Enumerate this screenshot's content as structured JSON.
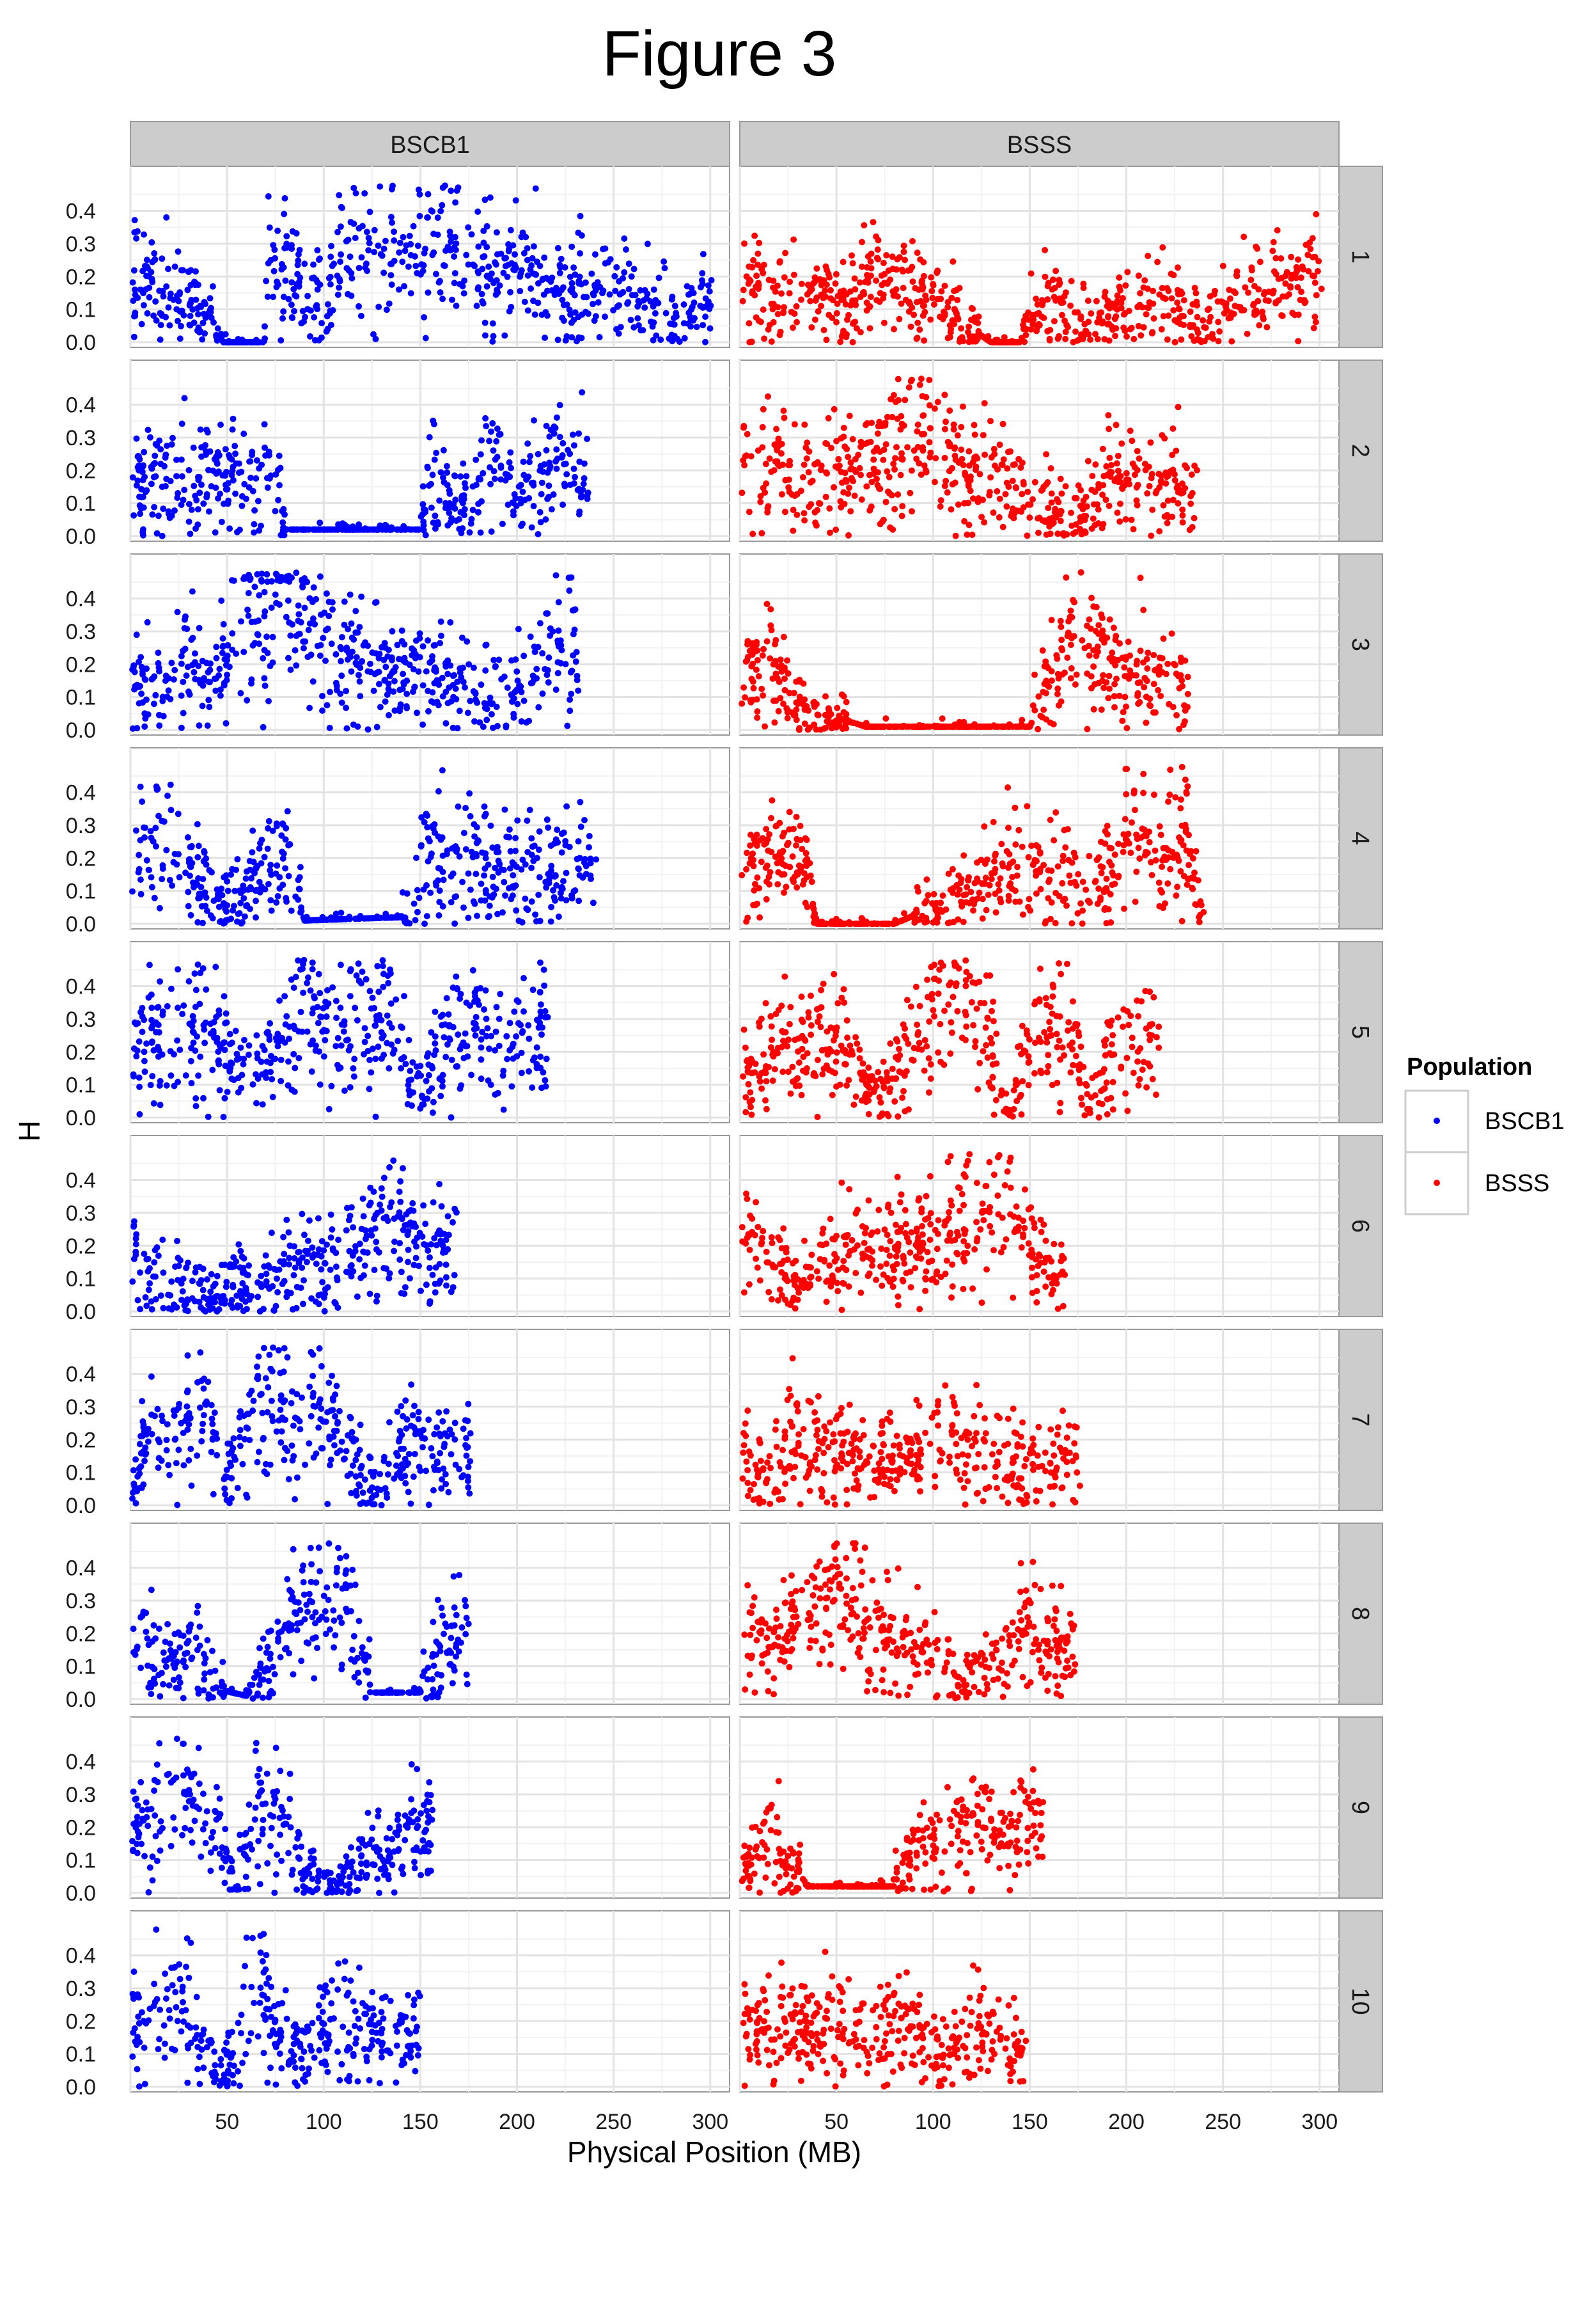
{
  "figure": {
    "title": "Figure 3",
    "xlabel": "Physical Position (MB)",
    "ylabel": "H"
  },
  "legend": {
    "title": "Population",
    "entries": [
      {
        "label": "BSCB1",
        "color": "#0000ff"
      },
      {
        "label": "BSSS",
        "color": "#ff0000"
      }
    ]
  },
  "chart_data": {
    "type": "scatter",
    "facet_columns": [
      "BSCB1",
      "BSSS"
    ],
    "facet_rows": [
      "1",
      "2",
      "3",
      "4",
      "5",
      "6",
      "7",
      "8",
      "9",
      "10"
    ],
    "x_ticks": [
      50,
      100,
      150,
      200,
      250,
      300
    ],
    "y_ticks": [
      0.0,
      0.1,
      0.2,
      0.3,
      0.4
    ],
    "y_tick_labels": [
      "0.0",
      "0.1",
      "0.2",
      "0.3",
      "0.4"
    ],
    "xlim": [
      0,
      310
    ],
    "ylim": [
      0,
      0.52
    ],
    "grid": true,
    "legend_position": "right",
    "series_colors": {
      "BSCB1": "#0000ff",
      "BSSS": "#ff0000"
    },
    "chromosome_length_mb": [
      301,
      237,
      232,
      241,
      217,
      169,
      176,
      175,
      157,
      150
    ],
    "profiles": {
      "BSCB1": [
        [
          [
            1,
            0.2
          ],
          [
            20,
            0.17
          ],
          [
            40,
            0.1
          ],
          [
            48,
            0.0
          ],
          [
            68,
            0.0
          ],
          [
            72,
            0.22
          ],
          [
            90,
            0.18
          ],
          [
            100,
            0.15
          ],
          [
            115,
            0.3
          ],
          [
            130,
            0.25
          ],
          [
            150,
            0.3
          ],
          [
            170,
            0.28
          ],
          [
            190,
            0.2
          ],
          [
            210,
            0.22
          ],
          [
            230,
            0.18
          ],
          [
            250,
            0.15
          ],
          [
            270,
            0.1
          ],
          [
            285,
            0.06
          ],
          [
            300,
            0.15
          ]
        ],
        [
          [
            1,
            0.17
          ],
          [
            20,
            0.18
          ],
          [
            40,
            0.17
          ],
          [
            55,
            0.17
          ],
          [
            65,
            0.12
          ],
          [
            75,
            0.3
          ],
          [
            80,
            0.02
          ],
          [
            150,
            0.02
          ],
          [
            155,
            0.2
          ],
          [
            165,
            0.12
          ],
          [
            175,
            0.1
          ],
          [
            190,
            0.25
          ],
          [
            200,
            0.12
          ],
          [
            210,
            0.2
          ],
          [
            237,
            0.22
          ]
        ],
        [
          [
            1,
            0.18
          ],
          [
            10,
            0.12
          ],
          [
            20,
            0.15
          ],
          [
            30,
            0.22
          ],
          [
            40,
            0.15
          ],
          [
            55,
            0.3
          ],
          [
            70,
            0.38
          ],
          [
            80,
            0.42
          ],
          [
            95,
            0.3
          ],
          [
            110,
            0.2
          ],
          [
            125,
            0.22
          ],
          [
            135,
            0.15
          ],
          [
            145,
            0.2
          ],
          [
            160,
            0.15
          ],
          [
            180,
            0.1
          ],
          [
            200,
            0.12
          ],
          [
            215,
            0.2
          ],
          [
            232,
            0.25
          ]
        ],
        [
          [
            1,
            0.2
          ],
          [
            20,
            0.25
          ],
          [
            30,
            0.22
          ],
          [
            40,
            0.1
          ],
          [
            50,
            0.05
          ],
          [
            65,
            0.15
          ],
          [
            80,
            0.2
          ],
          [
            90,
            0.01
          ],
          [
            140,
            0.02
          ],
          [
            150,
            0.18
          ],
          [
            165,
            0.25
          ],
          [
            180,
            0.2
          ],
          [
            195,
            0.15
          ],
          [
            210,
            0.15
          ],
          [
            225,
            0.18
          ],
          [
            241,
            0.2
          ]
        ],
        [
          [
            1,
            0.2
          ],
          [
            20,
            0.25
          ],
          [
            40,
            0.25
          ],
          [
            60,
            0.15
          ],
          [
            75,
            0.22
          ],
          [
            90,
            0.28
          ],
          [
            100,
            0.3
          ],
          [
            120,
            0.3
          ],
          [
            135,
            0.3
          ],
          [
            150,
            0.1
          ],
          [
            165,
            0.25
          ],
          [
            180,
            0.28
          ],
          [
            200,
            0.22
          ],
          [
            217,
            0.25
          ]
        ],
        [
          [
            1,
            0.15
          ],
          [
            20,
            0.1
          ],
          [
            40,
            0.05
          ],
          [
            55,
            0.08
          ],
          [
            70,
            0.07
          ],
          [
            85,
            0.15
          ],
          [
            100,
            0.12
          ],
          [
            110,
            0.2
          ],
          [
            125,
            0.22
          ],
          [
            140,
            0.28
          ],
          [
            155,
            0.18
          ],
          [
            169,
            0.2
          ]
        ],
        [
          [
            1,
            0.05
          ],
          [
            10,
            0.2
          ],
          [
            25,
            0.2
          ],
          [
            40,
            0.3
          ],
          [
            50,
            0.08
          ],
          [
            65,
            0.3
          ],
          [
            80,
            0.28
          ],
          [
            95,
            0.3
          ],
          [
            110,
            0.2
          ],
          [
            120,
            0.08
          ],
          [
            130,
            0.05
          ],
          [
            145,
            0.2
          ],
          [
            160,
            0.15
          ],
          [
            176,
            0.2
          ]
        ],
        [
          [
            1,
            0.22
          ],
          [
            15,
            0.12
          ],
          [
            25,
            0.12
          ],
          [
            35,
            0.15
          ],
          [
            45,
            0.03
          ],
          [
            60,
            0.01
          ],
          [
            75,
            0.12
          ],
          [
            90,
            0.3
          ],
          [
            105,
            0.32
          ],
          [
            115,
            0.25
          ],
          [
            125,
            0.02
          ],
          [
            150,
            0.02
          ],
          [
            160,
            0.15
          ],
          [
            175,
            0.22
          ]
        ],
        [
          [
            1,
            0.2
          ],
          [
            15,
            0.25
          ],
          [
            30,
            0.3
          ],
          [
            45,
            0.18
          ],
          [
            55,
            0.01
          ],
          [
            65,
            0.25
          ],
          [
            80,
            0.22
          ],
          [
            90,
            0.05
          ],
          [
            105,
            0.03
          ],
          [
            115,
            0.05
          ],
          [
            125,
            0.15
          ],
          [
            135,
            0.1
          ],
          [
            145,
            0.22
          ],
          [
            157,
            0.2
          ]
        ],
        [
          [
            1,
            0.15
          ],
          [
            15,
            0.28
          ],
          [
            30,
            0.22
          ],
          [
            45,
            0.02
          ],
          [
            55,
            0.1
          ],
          [
            65,
            0.35
          ],
          [
            75,
            0.15
          ],
          [
            90,
            0.08
          ],
          [
            100,
            0.22
          ],
          [
            115,
            0.2
          ],
          [
            130,
            0.15
          ],
          [
            150,
            0.18
          ]
        ]
      ],
      "BSSS": [
        [
          [
            1,
            0.2
          ],
          [
            20,
            0.12
          ],
          [
            40,
            0.15
          ],
          [
            60,
            0.12
          ],
          [
            70,
            0.2
          ],
          [
            90,
            0.15
          ],
          [
            100,
            0.12
          ],
          [
            110,
            0.08
          ],
          [
            130,
            0.0
          ],
          [
            145,
            0.0
          ],
          [
            150,
            0.08
          ],
          [
            165,
            0.12
          ],
          [
            180,
            0.05
          ],
          [
            200,
            0.1
          ],
          [
            220,
            0.15
          ],
          [
            240,
            0.05
          ],
          [
            260,
            0.12
          ],
          [
            280,
            0.15
          ],
          [
            301,
            0.2
          ]
        ],
        [
          [
            1,
            0.2
          ],
          [
            20,
            0.22
          ],
          [
            40,
            0.15
          ],
          [
            60,
            0.2
          ],
          [
            80,
            0.25
          ],
          [
            95,
            0.35
          ],
          [
            110,
            0.2
          ],
          [
            125,
            0.2
          ],
          [
            140,
            0.15
          ],
          [
            160,
            0.1
          ],
          [
            175,
            0.05
          ],
          [
            190,
            0.15
          ],
          [
            210,
            0.18
          ],
          [
            237,
            0.12
          ]
        ],
        [
          [
            1,
            0.12
          ],
          [
            15,
            0.2
          ],
          [
            30,
            0.08
          ],
          [
            45,
            0.04
          ],
          [
            60,
            0.02
          ],
          [
            65,
            0.01
          ],
          [
            130,
            0.01
          ],
          [
            150,
            0.01
          ],
          [
            170,
            0.25
          ],
          [
            190,
            0.18
          ],
          [
            210,
            0.15
          ],
          [
            232,
            0.12
          ]
        ],
        [
          [
            1,
            0.1
          ],
          [
            15,
            0.2
          ],
          [
            25,
            0.28
          ],
          [
            35,
            0.15
          ],
          [
            40,
            0.0
          ],
          [
            80,
            0.0
          ],
          [
            100,
            0.05
          ],
          [
            120,
            0.08
          ],
          [
            135,
            0.15
          ],
          [
            150,
            0.2
          ],
          [
            170,
            0.15
          ],
          [
            185,
            0.1
          ],
          [
            200,
            0.25
          ],
          [
            215,
            0.2
          ],
          [
            230,
            0.25
          ],
          [
            241,
            0.02
          ]
        ],
        [
          [
            1,
            0.1
          ],
          [
            20,
            0.2
          ],
          [
            40,
            0.25
          ],
          [
            55,
            0.2
          ],
          [
            70,
            0.05
          ],
          [
            85,
            0.15
          ],
          [
            100,
            0.3
          ],
          [
            115,
            0.35
          ],
          [
            130,
            0.2
          ],
          [
            140,
            0.0
          ],
          [
            150,
            0.25
          ],
          [
            170,
            0.3
          ],
          [
            180,
            0.05
          ],
          [
            200,
            0.25
          ],
          [
            217,
            0.2
          ]
        ],
        [
          [
            1,
            0.2
          ],
          [
            20,
            0.12
          ],
          [
            40,
            0.1
          ],
          [
            55,
            0.15
          ],
          [
            70,
            0.18
          ],
          [
            85,
            0.15
          ],
          [
            100,
            0.2
          ],
          [
            115,
            0.25
          ],
          [
            130,
            0.3
          ],
          [
            140,
            0.35
          ],
          [
            155,
            0.15
          ],
          [
            169,
            0.08
          ]
        ],
        [
          [
            1,
            0.15
          ],
          [
            15,
            0.05
          ],
          [
            25,
            0.2
          ],
          [
            40,
            0.18
          ],
          [
            60,
            0.15
          ],
          [
            80,
            0.12
          ],
          [
            100,
            0.2
          ],
          [
            115,
            0.18
          ],
          [
            130,
            0.15
          ],
          [
            150,
            0.1
          ],
          [
            160,
            0.15
          ],
          [
            176,
            0.15
          ]
        ],
        [
          [
            1,
            0.15
          ],
          [
            20,
            0.2
          ],
          [
            35,
            0.25
          ],
          [
            50,
            0.3
          ],
          [
            60,
            0.25
          ],
          [
            75,
            0.2
          ],
          [
            90,
            0.15
          ],
          [
            105,
            0.05
          ],
          [
            120,
            0.05
          ],
          [
            135,
            0.12
          ],
          [
            145,
            0.2
          ],
          [
            160,
            0.15
          ],
          [
            175,
            0.15
          ]
        ],
        [
          [
            1,
            0.05
          ],
          [
            15,
            0.15
          ],
          [
            25,
            0.08
          ],
          [
            35,
            0.02
          ],
          [
            80,
            0.02
          ],
          [
            90,
            0.15
          ],
          [
            105,
            0.18
          ],
          [
            120,
            0.22
          ],
          [
            135,
            0.2
          ],
          [
            150,
            0.22
          ],
          [
            157,
            0.2
          ]
        ],
        [
          [
            1,
            0.18
          ],
          [
            20,
            0.2
          ],
          [
            40,
            0.18
          ],
          [
            60,
            0.18
          ],
          [
            80,
            0.18
          ],
          [
            95,
            0.15
          ],
          [
            110,
            0.08
          ],
          [
            125,
            0.18
          ],
          [
            140,
            0.12
          ],
          [
            150,
            0.08
          ]
        ]
      ]
    }
  }
}
